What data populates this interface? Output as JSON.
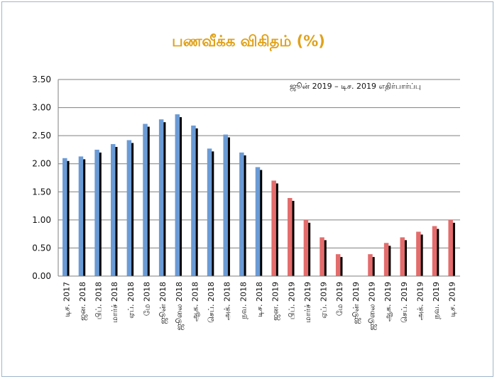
{
  "chart_data": {
    "type": "bar",
    "title": "பணவீக்க விகிதம் (%)",
    "annotation": "ஜூன் 2019 – டிச. 2019 எதிர்பார்ப்பு",
    "ylim": [
      0,
      3.5
    ],
    "yticks": [
      "0.00",
      "0.50",
      "1.00",
      "1.50",
      "2.00",
      "2.50",
      "3.00",
      "3.50"
    ],
    "grid": true,
    "categories": [
      "டிச. 2017",
      "ஜன. 2018",
      "பிப். 2018",
      "மார்ச் 2018",
      "ஏப். 2018",
      "மே 2018",
      "ஜூன் 2018",
      "ஜூலை 2018",
      "ஆக. 2018",
      "செப். 2018",
      "அக். 2018",
      "நவ. 2018",
      "டிச. 2018",
      "ஜன. 2019",
      "பிப். 2019",
      "மார்ச் 2019",
      "ஏப். 2019",
      "மே 2019",
      "ஜூன் 2019",
      "ஜூலை 2019",
      "ஆக. 2019",
      "செப். 2019",
      "அக். 2019",
      "நவ. 2019",
      "டிச. 2019"
    ],
    "series": [
      {
        "values": [
          2.1,
          2.13,
          2.25,
          2.35,
          2.42,
          2.71,
          2.79,
          2.88,
          2.68,
          2.27,
          2.52,
          2.2,
          1.94,
          null,
          null,
          null,
          null,
          null,
          null,
          null,
          null,
          null,
          null,
          null,
          null
        ],
        "color": "#6b9bd6"
      },
      {
        "values": [
          null,
          null,
          null,
          null,
          null,
          null,
          null,
          null,
          null,
          null,
          null,
          null,
          null,
          1.7,
          1.39,
          1.0,
          0.69,
          0.39,
          null,
          0.39,
          0.59,
          0.69,
          0.79,
          0.89,
          1.0
        ],
        "color": "#e46c6c"
      }
    ],
    "shadow_color": "#000000"
  }
}
